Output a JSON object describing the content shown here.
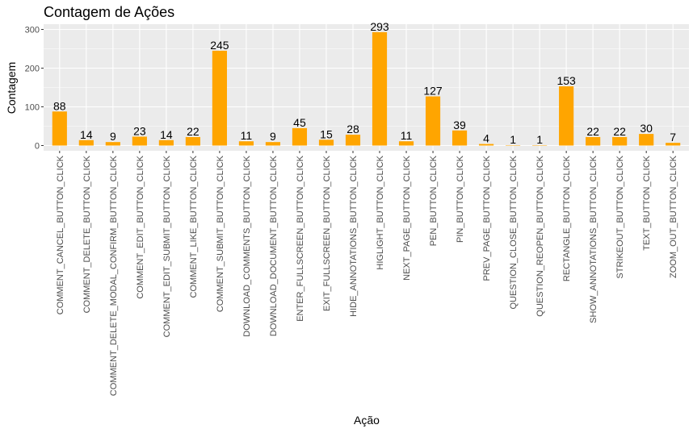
{
  "chart_data": {
    "type": "bar",
    "title": "Contagem de Ações",
    "xlabel": "Ação",
    "ylabel": "Contagem",
    "ylim": [
      0,
      300
    ],
    "yticks": [
      0,
      100,
      200,
      300
    ],
    "grid": true,
    "bar_color": "#FFA500",
    "panel_color": "#EBEBEB",
    "categories": [
      "COMMENT_CANCEL_BUTTON_CLICK",
      "COMMENT_DELETE_BUTTON_CLICK",
      "COMMENT_DELETE_MODAL_CONFIRM_BUTTON_CLICK",
      "COMMENT_EDIT_BUTTON_CLICK",
      "COMMENT_EDIT_SUBMIT_BUTTON_CLICK",
      "COMMENT_LIKE_BUTTON_CLICK",
      "COMMENT_SUBMIT_BUTTON_CLICK",
      "DOWNLOAD_COMMENTS_BUTTON_CLICK",
      "DOWNLOAD_DOCUMENT_BUTTON_CLICK",
      "ENTER_FULLSCREEN_BUTTON_CLICK",
      "EXIT_FULLSCREEN_BUTTON_CLICK",
      "HIDE_ANNOTATIONS_BUTTON_CLICK",
      "HIGLIGHT_BUTTON_CLICK",
      "NEXT_PAGE_BUTTON_CLICK",
      "PEN_BUTTON_CLICK",
      "PIN_BUTTON_CLICK",
      "PREV_PAGE_BUTTON_CLICK",
      "QUESTION_CLOSE_BUTTON_CLICK",
      "QUESTION_REOPEN_BUTTON_CLICK",
      "RECTANGLE_BUTTON_CLICK",
      "SHOW_ANNOTATIONS_BUTTON_CLICK",
      "STRIKEOUT_BUTTON_CLICK",
      "TEXT_BUTTON_CLICK",
      "ZOOM_OUT_BUTTON_CLICK"
    ],
    "values": [
      88,
      14,
      9,
      23,
      14,
      22,
      245,
      11,
      9,
      45,
      15,
      28,
      293,
      11,
      127,
      39,
      4,
      1,
      1,
      153,
      22,
      22,
      30,
      7
    ]
  }
}
